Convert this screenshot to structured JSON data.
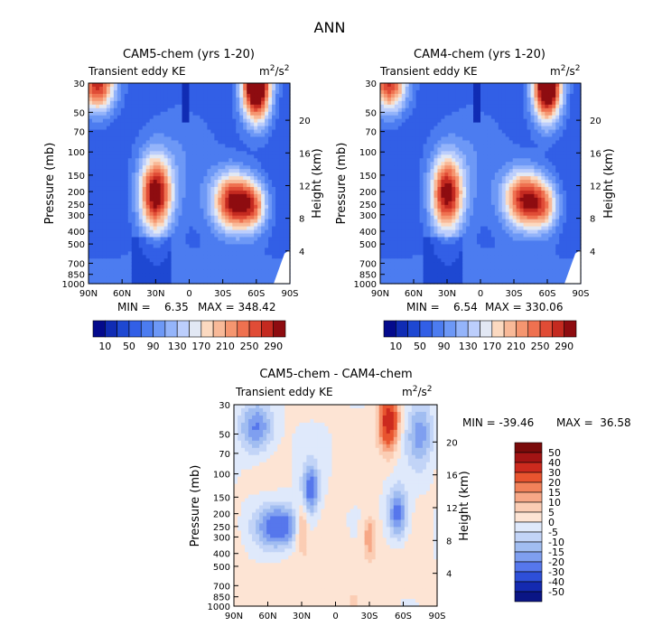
{
  "figure_title": "ANN",
  "chart_data": [
    {
      "type": "heatmap",
      "title": "CAM5-chem (yrs 1-20)",
      "subtitle_left": "Transient eddy KE",
      "units_base": "m",
      "units_exp1": "2",
      "units_mid": "/s",
      "units_exp2": "2",
      "xlabel": "",
      "ylabel": "Pressure (mb)",
      "y2label": "Height (km)",
      "x_ticks": [
        "90N",
        "60N",
        "30N",
        "0",
        "30S",
        "60S",
        "90S"
      ],
      "x_range": [
        90,
        -90
      ],
      "y_ticks": [
        "30",
        "50",
        "70",
        "100",
        "150",
        "200",
        "250",
        "300",
        "400",
        "500",
        "700",
        "850",
        "1000"
      ],
      "y_range_mb": [
        1000,
        30
      ],
      "y2_ticks": [
        "4",
        "8",
        "12",
        "16",
        "20"
      ],
      "min_label": "MIN =    6.35",
      "max_label": "MAX = 348.42",
      "colorbar_labels": [
        "10",
        "50",
        "90",
        "130",
        "170",
        "210",
        "250",
        "290"
      ],
      "blobs": [
        {
          "lat": -60,
          "p": 30,
          "amp": 345,
          "slat": 9,
          "sp": 0.45
        },
        {
          "lat": 82,
          "p": 30,
          "amp": 230,
          "slat": 11,
          "sp": 0.35
        },
        {
          "lat": 30,
          "p": 210,
          "amp": 250,
          "slat": 10,
          "sp": 0.45
        },
        {
          "lat": -40,
          "p": 240,
          "amp": 240,
          "slat": 13,
          "sp": 0.35
        },
        {
          "lat": -58,
          "p": 260,
          "amp": 120,
          "slat": 9,
          "sp": 0.3
        }
      ]
    },
    {
      "type": "heatmap",
      "title": "CAM4-chem (yrs 1-20)",
      "subtitle_left": "Transient eddy KE",
      "units_base": "m",
      "units_exp1": "2",
      "units_mid": "/s",
      "units_exp2": "2",
      "xlabel": "",
      "ylabel": "Pressure (mb)",
      "y2label": "Height (km)",
      "x_ticks": [
        "90N",
        "60N",
        "30N",
        "0",
        "30S",
        "60S",
        "90S"
      ],
      "x_range": [
        90,
        -90
      ],
      "y_ticks": [
        "30",
        "50",
        "70",
        "100",
        "150",
        "200",
        "250",
        "300",
        "400",
        "500",
        "700",
        "850",
        "1000"
      ],
      "y_range_mb": [
        1000,
        30
      ],
      "y2_ticks": [
        "4",
        "8",
        "12",
        "16",
        "20"
      ],
      "min_label": "MIN =    6.54",
      "max_label": "MAX = 330.06",
      "colorbar_labels": [
        "10",
        "50",
        "90",
        "130",
        "170",
        "210",
        "250",
        "290"
      ],
      "blobs": [
        {
          "lat": -60,
          "p": 30,
          "amp": 330,
          "slat": 9,
          "sp": 0.45
        },
        {
          "lat": 82,
          "p": 30,
          "amp": 220,
          "slat": 11,
          "sp": 0.35
        },
        {
          "lat": 30,
          "p": 210,
          "amp": 240,
          "slat": 10,
          "sp": 0.45
        },
        {
          "lat": -40,
          "p": 230,
          "amp": 230,
          "slat": 13,
          "sp": 0.35
        },
        {
          "lat": -58,
          "p": 260,
          "amp": 110,
          "slat": 9,
          "sp": 0.3
        }
      ]
    },
    {
      "type": "heatmap",
      "title": "CAM5-chem - CAM4-chem",
      "subtitle_left": "Transient eddy KE",
      "units_base": "m",
      "units_exp1": "2",
      "units_mid": "/s",
      "units_exp2": "2",
      "xlabel": "",
      "ylabel": "Pressure (mb)",
      "y2label": "Height (km)",
      "x_ticks": [
        "90N",
        "60N",
        "30N",
        "0",
        "30S",
        "60S",
        "90S"
      ],
      "x_range": [
        90,
        -90
      ],
      "y_ticks": [
        "30",
        "50",
        "70",
        "100",
        "150",
        "200",
        "250",
        "300",
        "400",
        "500",
        "700",
        "850",
        "1000"
      ],
      "y_range_mb": [
        1000,
        30
      ],
      "y2_ticks": [
        "4",
        "8",
        "12",
        "16",
        "20"
      ],
      "min_label": "MIN = -39.46",
      "max_label": "MAX =  36.58",
      "colorbar_labels": [
        "50",
        "40",
        "30",
        "20",
        "15",
        "10",
        "5",
        "0",
        "-5",
        "-10",
        "-15",
        "-20",
        "-30",
        "-40",
        "-50"
      ],
      "blobs": [
        {
          "lat": -47,
          "p": 40,
          "amp": 37,
          "slat": 6,
          "sp": 0.35
        },
        {
          "lat": 30,
          "p": 250,
          "amp": 18,
          "slat": 4,
          "sp": 0.25
        },
        {
          "lat": -30,
          "p": 300,
          "amp": 15,
          "slat": 4,
          "sp": 0.25
        },
        {
          "lat": 5,
          "p": 700,
          "amp": 4,
          "slat": 40,
          "sp": 0.6
        },
        {
          "lat": 50,
          "p": 250,
          "amp": -28,
          "slat": 14,
          "sp": 0.25
        },
        {
          "lat": 22,
          "p": 130,
          "amp": -25,
          "slat": 5,
          "sp": 0.3
        },
        {
          "lat": -55,
          "p": 200,
          "amp": -25,
          "slat": 6,
          "sp": 0.3
        },
        {
          "lat": 70,
          "p": 45,
          "amp": -22,
          "slat": 10,
          "sp": 0.3
        },
        {
          "lat": -75,
          "p": 50,
          "amp": -18,
          "slat": 8,
          "sp": 0.4
        }
      ]
    }
  ]
}
